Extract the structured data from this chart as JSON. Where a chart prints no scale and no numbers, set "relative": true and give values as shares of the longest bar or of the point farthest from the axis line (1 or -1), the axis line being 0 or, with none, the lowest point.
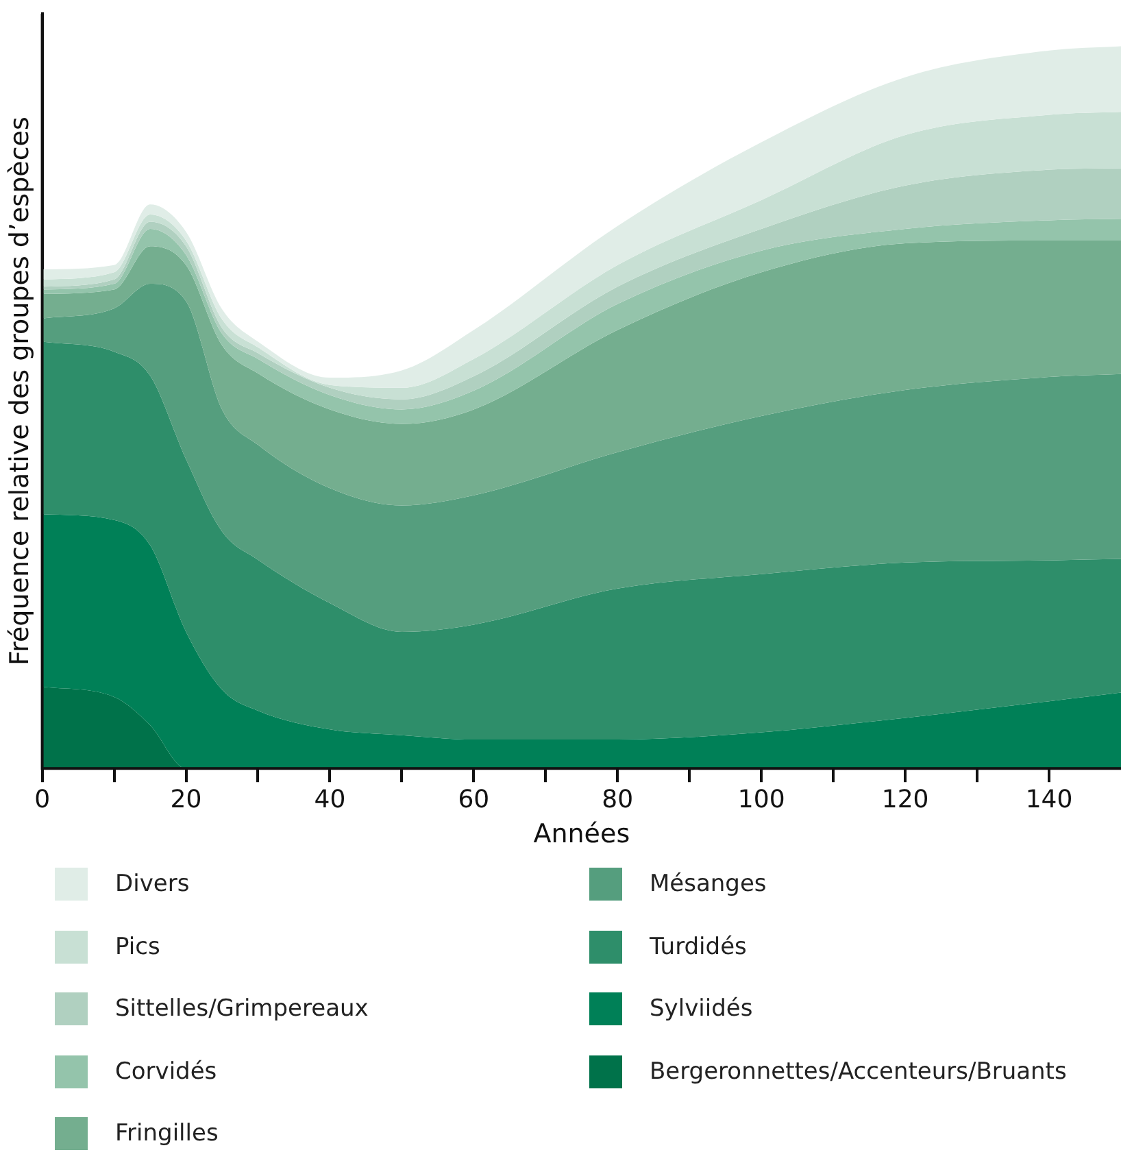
{
  "chart_data": {
    "type": "area",
    "stacked": true,
    "relative": true,
    "xlabel": "Années",
    "ylabel": "Fréquence relative des groupes d’espèces",
    "legend": "bottom",
    "x": [
      0,
      10,
      15,
      20,
      25,
      30,
      40,
      50,
      60,
      80,
      100,
      120,
      140,
      150
    ],
    "xlim": [
      0,
      150
    ],
    "xticks": [
      0,
      {
        "value": 10,
        "label": null
      },
      20,
      {
        "value": 30,
        "label": null
      },
      40,
      {
        "value": 50,
        "label": null
      },
      60,
      {
        "value": 70,
        "label": null
      },
      80,
      {
        "value": 90,
        "label": null
      },
      100,
      {
        "value": 110,
        "label": null
      },
      120,
      {
        "value": 130,
        "label": null
      },
      140
    ],
    "series": [
      {
        "name": "Bergeronnettes/Accenteurs/Bruants",
        "color": "#00724a",
        "values": [
          0.113,
          0.099,
          0.06,
          0,
          0,
          0,
          0,
          0,
          0,
          0,
          0,
          0,
          0,
          0
        ]
      },
      {
        "name": "Sylviidés",
        "color": "#008057",
        "values": [
          0.239,
          0.245,
          0.249,
          0.189,
          0.109,
          0.08,
          0.054,
          0.046,
          0.04,
          0.04,
          0.05,
          0.07,
          0.093,
          0.105
        ]
      },
      {
        "name": "Turdidés",
        "color": "#2e8e6a",
        "values": [
          0.239,
          0.233,
          0.235,
          0.239,
          0.219,
          0.209,
          0.175,
          0.143,
          0.159,
          0.209,
          0.219,
          0.215,
          0.195,
          0.185
        ]
      },
      {
        "name": "Mésanges",
        "color": "#559e7e",
        "values": [
          0.032,
          0.06,
          0.127,
          0.219,
          0.169,
          0.159,
          0.159,
          0.175,
          0.179,
          0.189,
          0.219,
          0.239,
          0.254,
          0.256
        ]
      },
      {
        "name": "Fringilles",
        "color": "#74ae8f",
        "values": [
          0.034,
          0.026,
          0.052,
          0.05,
          0.089,
          0.099,
          0.109,
          0.113,
          0.119,
          0.169,
          0.199,
          0.203,
          0.189,
          0.185
        ]
      },
      {
        "name": "Corvidés",
        "color": "#94c4ab",
        "values": [
          0.006,
          0.008,
          0.024,
          0.014,
          0.016,
          0.02,
          0.02,
          0.02,
          0.026,
          0.036,
          0.03,
          0.02,
          0.028,
          0.03
        ]
      },
      {
        "name": "Sittelles/Grimpereaux",
        "color": "#b0d0c0",
        "values": [
          0.004,
          0.006,
          0.01,
          0.012,
          0.008,
          0.008,
          0.01,
          0.014,
          0.02,
          0.024,
          0.03,
          0.06,
          0.07,
          0.07
        ]
      },
      {
        "name": "Pics",
        "color": "#c8e0d4",
        "values": [
          0.01,
          0.01,
          0.01,
          0.008,
          0.012,
          0.008,
          0.004,
          0.016,
          0.024,
          0.03,
          0.04,
          0.07,
          0.076,
          0.078
        ]
      },
      {
        "name": "Divers",
        "color": "#e0ede7",
        "values": [
          0.014,
          0.01,
          0.014,
          0.012,
          0.014,
          0.008,
          0.01,
          0.024,
          0.04,
          0.054,
          0.08,
          0.08,
          0.089,
          0.091
        ]
      }
    ]
  }
}
